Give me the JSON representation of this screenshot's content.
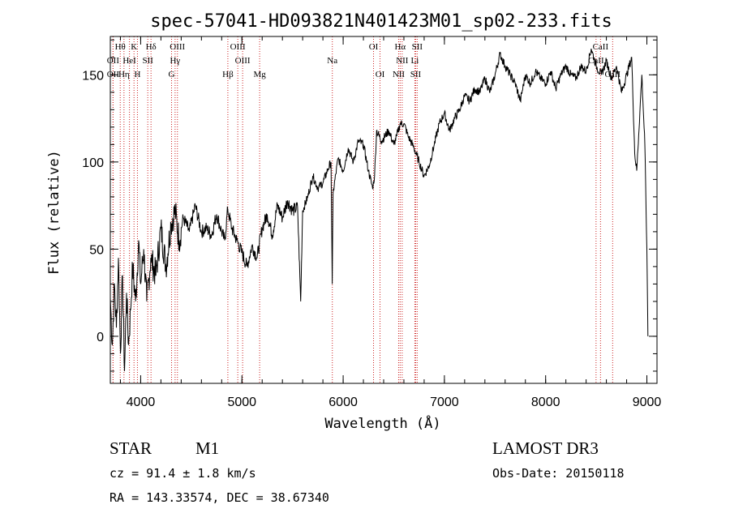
{
  "chart_data": {
    "type": "line",
    "title": "spec-57041-HD093821N401423M01_sp02-233.fits",
    "xlabel": "Wavelength (Å)",
    "ylabel": "Flux (relative)",
    "xlim": [
      3700,
      9100
    ],
    "ylim": [
      -27,
      172
    ],
    "xticks": [
      4000,
      5000,
      6000,
      7000,
      8000,
      9000
    ],
    "yticks": [
      0,
      50,
      100,
      150
    ],
    "series": [
      {
        "name": "flux",
        "x": [
          3700,
          3720,
          3740,
          3760,
          3780,
          3800,
          3820,
          3840,
          3860,
          3880,
          3900,
          3920,
          3950,
          3980,
          4000,
          4030,
          4060,
          4100,
          4150,
          4200,
          4250,
          4300,
          4340,
          4380,
          4420,
          4480,
          4540,
          4600,
          4650,
          4700,
          4750,
          4800,
          4830,
          4860,
          4900,
          4950,
          5000,
          5050,
          5100,
          5150,
          5200,
          5250,
          5300,
          5350,
          5400,
          5450,
          5500,
          5550,
          5580,
          5600,
          5650,
          5700,
          5750,
          5800,
          5850,
          5880,
          5892,
          5900,
          5950,
          6000,
          6050,
          6100,
          6150,
          6200,
          6250,
          6290,
          6310,
          6330,
          6380,
          6450,
          6500,
          6530,
          6563,
          6600,
          6640,
          6700,
          6750,
          6800,
          6850,
          6900,
          6950,
          7000,
          7050,
          7100,
          7150,
          7200,
          7250,
          7300,
          7350,
          7400,
          7450,
          7500,
          7550,
          7600,
          7650,
          7700,
          7750,
          7800,
          7850,
          7900,
          7950,
          8000,
          8050,
          8100,
          8150,
          8200,
          8250,
          8300,
          8350,
          8400,
          8450,
          8500,
          8550,
          8600,
          8650,
          8700,
          8750,
          8800,
          8850,
          8880,
          8900,
          8950,
          8980,
          9000,
          9010
        ],
        "y": [
          22,
          -5,
          30,
          5,
          45,
          -10,
          35,
          -20,
          25,
          -5,
          15,
          40,
          20,
          55,
          30,
          50,
          20,
          45,
          35,
          62,
          40,
          65,
          72,
          55,
          68,
          60,
          75,
          60,
          62,
          58,
          70,
          60,
          55,
          73,
          62,
          55,
          48,
          40,
          52,
          45,
          62,
          70,
          58,
          75,
          68,
          78,
          72,
          74,
          20,
          72,
          80,
          92,
          85,
          88,
          96,
          100,
          30,
          82,
          102,
          95,
          108,
          100,
          112,
          110,
          95,
          85,
          92,
          118,
          112,
          118,
          110,
          115,
          122,
          122,
          115,
          108,
          100,
          92,
          98,
          110,
          122,
          128,
          118,
          125,
          130,
          138,
          135,
          142,
          140,
          148,
          140,
          150,
          162,
          155,
          150,
          145,
          135,
          150,
          145,
          152,
          148,
          145,
          152,
          142,
          150,
          155,
          150,
          148,
          155,
          152,
          165,
          155,
          150,
          158,
          148,
          155,
          140,
          150,
          160,
          105,
          95,
          150,
          110,
          50,
          0
        ]
      }
    ],
    "spectral_lines": [
      {
        "label": "Hθ",
        "wavelength": 3798,
        "row": 0
      },
      {
        "label": "K",
        "wavelength": 3934,
        "row": 0
      },
      {
        "label": "Hδ",
        "wavelength": 4102,
        "row": 0
      },
      {
        "label": "OIII",
        "wavelength": 4363,
        "row": 0
      },
      {
        "label": "OIII",
        "wavelength": 4959,
        "row": 0
      },
      {
        "label": "OI",
        "wavelength": 6300,
        "row": 0
      },
      {
        "label": "Hα",
        "wavelength": 6563,
        "row": 0
      },
      {
        "label": "SII",
        "wavelength": 6731,
        "row": 0
      },
      {
        "label": "CaII",
        "wavelength": 8542,
        "row": 0
      },
      {
        "label": "OII",
        "wavelength": 3727,
        "row": 1
      },
      {
        "label": "HeI",
        "wavelength": 3889,
        "row": 1
      },
      {
        "label": "SII",
        "wavelength": 4070,
        "row": 1
      },
      {
        "label": "Hγ",
        "wavelength": 4340,
        "row": 1
      },
      {
        "label": "OIII",
        "wavelength": 5007,
        "row": 1
      },
      {
        "label": "Na",
        "wavelength": 5893,
        "row": 1
      },
      {
        "label": "NII",
        "wavelength": 6583,
        "row": 1
      },
      {
        "label": "Li",
        "wavelength": 6708,
        "row": 1
      },
      {
        "label": "CaII",
        "wavelength": 8498,
        "row": 1
      },
      {
        "label": "OII",
        "wavelength": 3727,
        "row": 2
      },
      {
        "label": "Hη",
        "wavelength": 3835,
        "row": 2
      },
      {
        "label": "H",
        "wavelength": 3968,
        "row": 2
      },
      {
        "label": "G",
        "wavelength": 4305,
        "row": 2
      },
      {
        "label": "Hβ",
        "wavelength": 4861,
        "row": 2
      },
      {
        "label": "Mg",
        "wavelength": 5175,
        "row": 2
      },
      {
        "label": "OI",
        "wavelength": 6364,
        "row": 2
      },
      {
        "label": "NII",
        "wavelength": 6548,
        "row": 2
      },
      {
        "label": "SII",
        "wavelength": 6716,
        "row": 2
      },
      {
        "label": "CaII",
        "wavelength": 8662,
        "row": 2
      }
    ],
    "line_color": "#cc2222",
    "spectrum_color": "#000000"
  },
  "info": {
    "class_label": "STAR",
    "subclass": "M1",
    "survey": "LAMOST DR3",
    "cz": "cz = 91.4 ± 1.8 km/s",
    "obs_date": "Obs-Date: 20150118",
    "radec": "RA = 143.33574, DEC =  38.67340"
  }
}
